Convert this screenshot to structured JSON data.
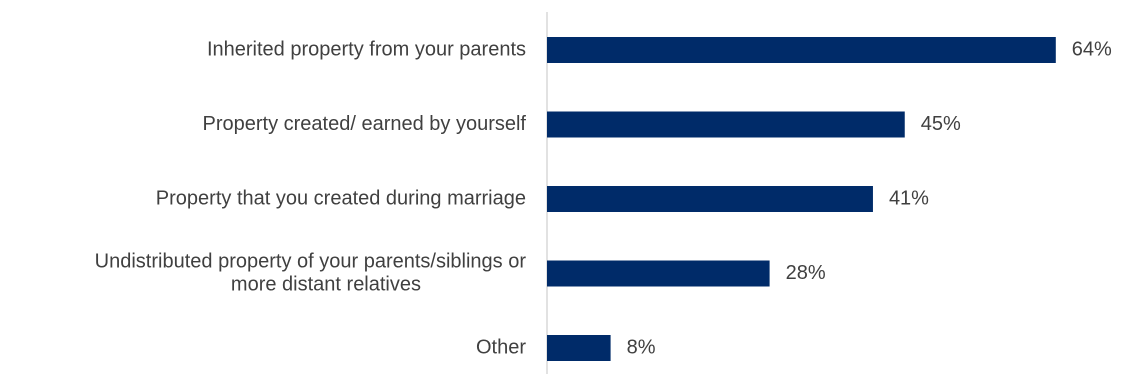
{
  "chart_data": {
    "type": "bar",
    "orientation": "horizontal",
    "categories": [
      "Inherited property from your parents",
      "Property created/ earned by yourself",
      "Property that you created during marriage",
      "Undistributed property of your parents/siblings or more distant relatives",
      "Other"
    ],
    "category_lines": [
      [
        "Inherited property from your parents"
      ],
      [
        "Property created/ earned by yourself"
      ],
      [
        "Property that you created during marriage"
      ],
      [
        "Undistributed property of your parents/siblings or",
        "more distant relatives"
      ],
      [
        "Other"
      ]
    ],
    "values": [
      64,
      45,
      41,
      28,
      8
    ],
    "value_labels": [
      "64%",
      "45%",
      "41%",
      "28%",
      "8%"
    ],
    "bar_color": "#002B69",
    "axis_color": "#D9D9D9",
    "text_color": "#404040",
    "title": "",
    "xlabel": "",
    "ylabel": "",
    "grid": false,
    "legend": "none"
  }
}
